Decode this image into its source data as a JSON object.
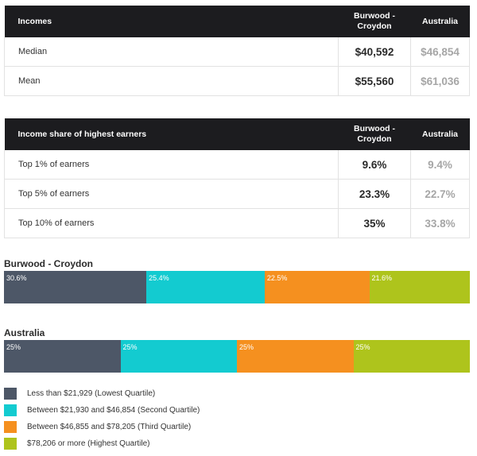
{
  "incomes_table": {
    "headers": [
      "Incomes",
      "Burwood -\nCroydon",
      "Australia"
    ],
    "header_label": "Incomes",
    "header_region": "Burwood - Croydon",
    "header_region_line1": "Burwood -",
    "header_region_line2": "Croydon",
    "header_country": "Australia",
    "rows": [
      {
        "label": "Median",
        "region": "$40,592",
        "country": "$46,854"
      },
      {
        "label": "Mean",
        "region": "$55,560",
        "country": "$61,036"
      }
    ]
  },
  "share_table": {
    "header_label": "Income share of highest earners",
    "header_region_line1": "Burwood -",
    "header_region_line2": "Croydon",
    "header_country": "Australia",
    "rows": [
      {
        "label": "Top 1% of earners",
        "region": "9.6%",
        "country": "9.4%"
      },
      {
        "label": "Top 5% of earners",
        "region": "23.3%",
        "country": "22.7%"
      },
      {
        "label": "Top 10% of earners",
        "region": "35%",
        "country": "33.8%"
      }
    ]
  },
  "chart_data": {
    "type": "bar",
    "subtype": "stacked-100-percent-horizontal",
    "categories": [
      "Burwood - Croydon",
      "Australia"
    ],
    "series": [
      {
        "name": "Less than $21,929 (Lowest Quartile)",
        "color": "#4d5767",
        "values": [
          30.6,
          25
        ],
        "labels": [
          "30.6%",
          "25%"
        ]
      },
      {
        "name": "Between $21,930 and $46,854 (Second Quartile)",
        "color": "#13cbd0",
        "values": [
          25.4,
          25
        ],
        "labels": [
          "25.4%",
          "25%"
        ]
      },
      {
        "name": "Between $46,855 and $78,205 (Third Quartile)",
        "color": "#f5901f",
        "values": [
          22.5,
          25
        ],
        "labels": [
          "22.5%",
          "25%"
        ]
      },
      {
        "name": "$78,206 or more (Highest Quartile)",
        "color": "#aec41c",
        "values": [
          21.6,
          25
        ],
        "labels": [
          "21.6%",
          "25%"
        ]
      }
    ],
    "legend_position": "bottom-left"
  }
}
